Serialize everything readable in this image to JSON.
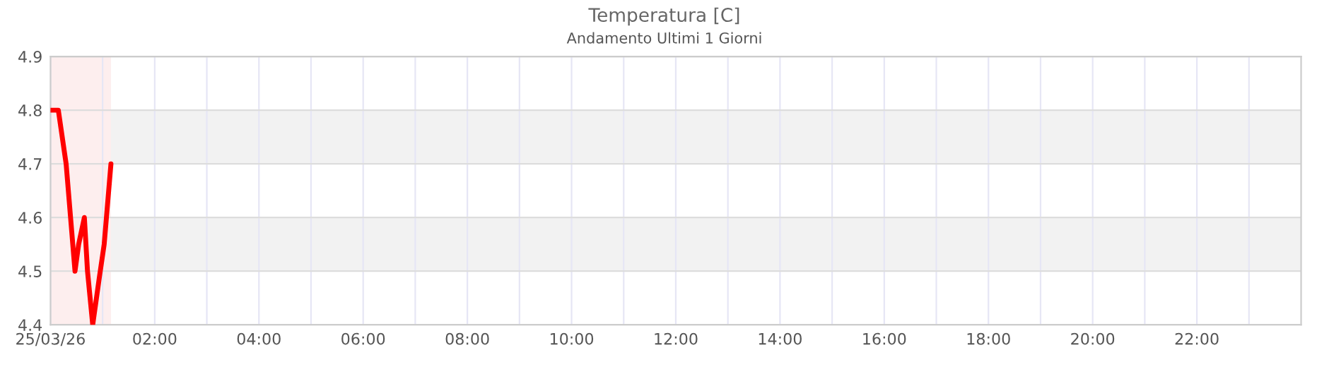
{
  "chart_data": {
    "type": "line",
    "title": "Temperatura [C]",
    "subtitle": "Andamento Ultimi 1 Giorni",
    "x": [
      0,
      0.15,
      0.3,
      0.47,
      0.54,
      0.65,
      0.71,
      0.81,
      0.94,
      1.03,
      1.16
    ],
    "series": [
      {
        "color": "#ff0000",
        "values": [
          4.8,
          4.8,
          4.7,
          4.5,
          4.55,
          4.6,
          4.5,
          4.4,
          4.49,
          4.55,
          4.7
        ]
      }
    ],
    "xlim": [
      0,
      24
    ],
    "ylim": [
      4.4,
      4.9
    ],
    "xticks": [
      {
        "value": 0,
        "label": "25/03/26"
      },
      {
        "value": 1,
        "label": null
      },
      {
        "value": 2,
        "label": "02:00"
      },
      {
        "value": 3,
        "label": null
      },
      {
        "value": 4,
        "label": "04:00"
      },
      {
        "value": 5,
        "label": null
      },
      {
        "value": 6,
        "label": "06:00"
      },
      {
        "value": 7,
        "label": null
      },
      {
        "value": 8,
        "label": "08:00"
      },
      {
        "value": 9,
        "label": null
      },
      {
        "value": 10,
        "label": "10:00"
      },
      {
        "value": 11,
        "label": null
      },
      {
        "value": 12,
        "label": "12:00"
      },
      {
        "value": 13,
        "label": null
      },
      {
        "value": 14,
        "label": "14:00"
      },
      {
        "value": 15,
        "label": null
      },
      {
        "value": 16,
        "label": "16:00"
      },
      {
        "value": 17,
        "label": null
      },
      {
        "value": 18,
        "label": "18:00"
      },
      {
        "value": 19,
        "label": null
      },
      {
        "value": 20,
        "label": "20:00"
      },
      {
        "value": 21,
        "label": null
      },
      {
        "value": 22,
        "label": "22:00"
      },
      {
        "value": 23,
        "label": null
      }
    ],
    "yticks": [
      4.4,
      4.5,
      4.6,
      4.7,
      4.8,
      4.9
    ],
    "bands": [
      {
        "axis": "y",
        "from": 4.5,
        "to": 4.6,
        "color": "#f2f2f2"
      },
      {
        "axis": "y",
        "from": 4.7,
        "to": 4.8,
        "color": "#f2f2f2"
      },
      {
        "axis": "x",
        "from": 0,
        "to": 1.16,
        "color": "#fdeeee"
      }
    ],
    "grid": true,
    "marker": "none",
    "line_style": "solid",
    "legend": false
  }
}
